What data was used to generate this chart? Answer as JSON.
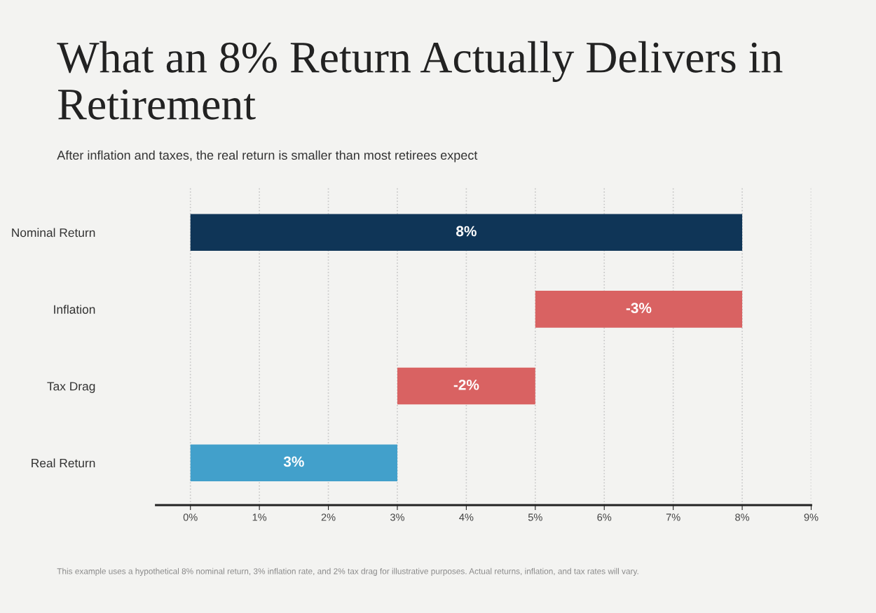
{
  "chart_data": {
    "type": "bar",
    "orientation": "horizontal",
    "title": "What an 8% Return Actually Delivers in Retirement",
    "subtitle": "After inflation and taxes, the real return is smaller than most retirees expect",
    "categories": [
      "Nominal Return",
      "Inflation",
      "Tax Drag",
      "Real Return"
    ],
    "base": [
      0,
      8,
      5,
      0
    ],
    "values": [
      8,
      -3,
      -2,
      3
    ],
    "colors": [
      "#0f3557",
      "#d96262",
      "#d96262",
      "#42a0cb"
    ],
    "value_labels": [
      "8%",
      "-3%",
      "-2%",
      "3%"
    ],
    "xlim": [
      -0.5,
      9
    ],
    "xticks": [
      {
        "value": 0,
        "label": "0%"
      },
      {
        "value": 1,
        "label": "1%"
      },
      {
        "value": 2,
        "label": "2%"
      },
      {
        "value": 3,
        "label": "3%"
      },
      {
        "value": 4,
        "label": "4%"
      },
      {
        "value": 5,
        "label": "5%"
      },
      {
        "value": 6,
        "label": "6%"
      },
      {
        "value": 7,
        "label": "7%"
      },
      {
        "value": 8,
        "label": "8%"
      },
      {
        "value": 9,
        "label": "9%"
      }
    ],
    "grid": "x",
    "annotations": [
      "This example uses a hypothetical 8% nominal return, 3% inflation rate, and 2% tax drag for illustrative purposes. Actual returns, inflation, and tax rates will vary."
    ]
  }
}
